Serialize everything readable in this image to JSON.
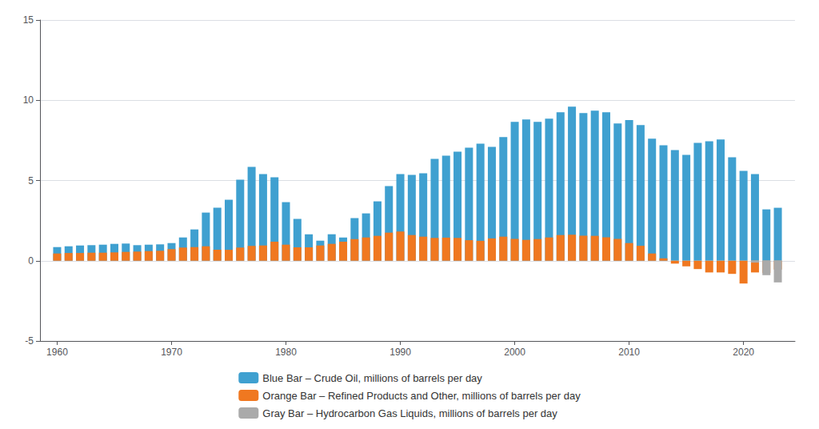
{
  "chart_data": {
    "type": "bar",
    "stacked": true,
    "x": [
      1960,
      1961,
      1962,
      1963,
      1964,
      1965,
      1966,
      1967,
      1968,
      1969,
      1970,
      1971,
      1972,
      1973,
      1974,
      1975,
      1976,
      1977,
      1978,
      1979,
      1980,
      1981,
      1982,
      1983,
      1984,
      1985,
      1986,
      1987,
      1988,
      1989,
      1990,
      1991,
      1992,
      1993,
      1994,
      1995,
      1996,
      1997,
      1998,
      1999,
      2000,
      2001,
      2002,
      2003,
      2004,
      2005,
      2006,
      2007,
      2008,
      2009,
      2010,
      2011,
      2012,
      2013,
      2014,
      2015,
      2016,
      2017,
      2018,
      2019,
      2020,
      2021,
      2022,
      2023
    ],
    "series": [
      {
        "name": "Blue Bar – Crude Oil, millions of barrels per day",
        "color": "#3fa0d0",
        "values": [
          0.85,
          0.9,
          0.95,
          0.97,
          1.0,
          1.05,
          1.07,
          0.97,
          1.0,
          1.02,
          1.1,
          1.45,
          1.95,
          3.0,
          3.3,
          3.8,
          5.05,
          5.85,
          5.4,
          5.2,
          3.65,
          2.6,
          1.65,
          1.25,
          1.65,
          1.45,
          2.65,
          2.95,
          3.7,
          4.65,
          5.4,
          5.35,
          5.45,
          6.35,
          6.55,
          6.8,
          7.05,
          7.3,
          7.1,
          7.7,
          8.65,
          8.8,
          8.65,
          8.85,
          9.25,
          9.6,
          9.2,
          9.35,
          9.25,
          8.55,
          8.77,
          8.45,
          7.6,
          7.2,
          6.9,
          6.6,
          7.35,
          7.45,
          7.55,
          6.45,
          5.6,
          5.4,
          3.2,
          3.3
        ]
      },
      {
        "name": "Orange Bar – Refined Products and Other, millions of barrels per day",
        "color": "#f07820",
        "values": [
          0.45,
          0.48,
          0.48,
          0.5,
          0.5,
          0.52,
          0.55,
          0.57,
          0.6,
          0.62,
          0.72,
          0.82,
          0.85,
          0.9,
          0.68,
          0.68,
          0.82,
          0.92,
          0.95,
          1.18,
          1.0,
          0.84,
          0.84,
          0.95,
          1.05,
          1.19,
          1.35,
          1.45,
          1.55,
          1.75,
          1.82,
          1.6,
          1.5,
          1.42,
          1.44,
          1.42,
          1.28,
          1.24,
          1.39,
          1.5,
          1.36,
          1.3,
          1.35,
          1.45,
          1.6,
          1.62,
          1.56,
          1.55,
          1.46,
          1.36,
          1.1,
          0.93,
          0.45,
          0.15,
          -0.18,
          -0.35,
          -0.52,
          -0.73,
          -0.73,
          -0.82,
          -1.42,
          -0.73,
          -0.77,
          -0.55
        ]
      },
      {
        "name": "Gray Bar – Hydrocarbon Gas Liquids, millions of barrels per day",
        "color": "#aaaaaa",
        "values": [
          0.0,
          0.0,
          0.0,
          0.0,
          0.0,
          0.0,
          0.0,
          0.0,
          0.0,
          0.0,
          0.0,
          0.0,
          0.0,
          0.0,
          0.0,
          0.0,
          0.0,
          0.0,
          0.0,
          0.0,
          0.0,
          0.0,
          0.0,
          0.0,
          0.0,
          0.0,
          0.0,
          0.0,
          0.0,
          0.0,
          0.0,
          0.0,
          0.0,
          0.0,
          0.0,
          0.0,
          0.0,
          0.0,
          0.0,
          0.0,
          0.0,
          0.0,
          0.0,
          0.0,
          0.0,
          0.0,
          0.0,
          0.0,
          0.0,
          0.0,
          0.0,
          0.0,
          0.0,
          0.0,
          0.0,
          0.0,
          0.0,
          0.0,
          0.0,
          0.0,
          0.0,
          -0.12,
          -0.9,
          -1.35
        ]
      }
    ],
    "xlim": [
      1958.5,
      2024.5
    ],
    "xticks": [
      1960,
      1970,
      1980,
      1990,
      2000,
      2010,
      2020
    ],
    "ylim": [
      -5,
      15
    ],
    "yticks": [
      -5,
      0,
      5,
      10,
      15
    ],
    "grid": true,
    "legend": "bottom"
  }
}
